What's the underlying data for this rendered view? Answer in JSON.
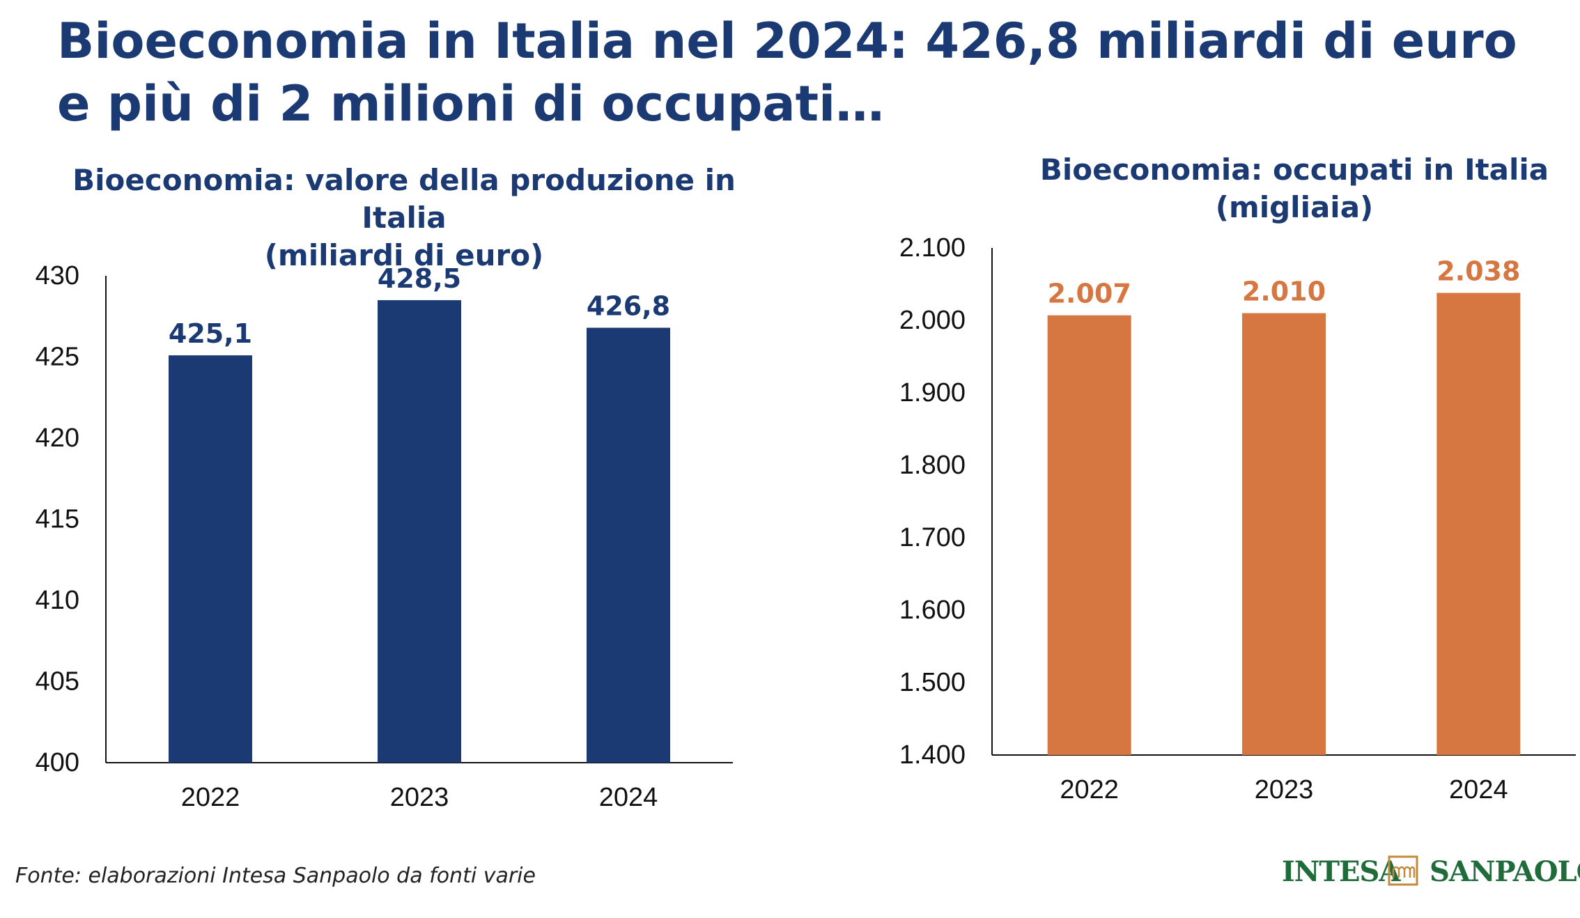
{
  "headline": {
    "line1": "Bioeconomia in Italia nel 2024: 426,8 miliardi di euro",
    "line2": "e più di 2 milioni di occupati…"
  },
  "chart_data": [
    {
      "type": "bar",
      "title": "Bioeconomia: valore della produzione in Italia",
      "subtitle": "(miliardi di euro)",
      "categories": [
        "2022",
        "2023",
        "2024"
      ],
      "values": [
        425.1,
        428.5,
        426.8
      ],
      "value_labels": [
        "425,1",
        "428,5",
        "426,8"
      ],
      "ylim": [
        400,
        430
      ],
      "yticks": [
        400,
        405,
        410,
        415,
        420,
        425,
        430
      ],
      "ytick_labels": [
        "400",
        "405",
        "410",
        "415",
        "420",
        "425",
        "430"
      ],
      "color": "#1b3a73",
      "grid": false
    },
    {
      "type": "bar",
      "title": "Bioeconomia: occupati in Italia",
      "subtitle": "(migliaia)",
      "categories": [
        "2022",
        "2023",
        "2024"
      ],
      "values": [
        2007,
        2010,
        2038
      ],
      "value_labels": [
        "2.007",
        "2.010",
        "2.038"
      ],
      "ylim": [
        1400,
        2100
      ],
      "yticks": [
        1400,
        1500,
        1600,
        1700,
        1800,
        1900,
        2000,
        2100
      ],
      "ytick_labels": [
        "1.400",
        "1.500",
        "1.600",
        "1.700",
        "1.800",
        "1.900",
        "2.000",
        "2.100"
      ],
      "color": "#d67741",
      "grid": false
    }
  ],
  "source": "Fonte: elaborazioni Intesa Sanpaolo da fonti varie",
  "brand": {
    "word1": "INTESA",
    "word2": "SANPAOLO",
    "mark_icon": "intesa-sanpaolo-logo-mark",
    "color": "#1f6b3a",
    "mark_color": "#c28a3e"
  }
}
